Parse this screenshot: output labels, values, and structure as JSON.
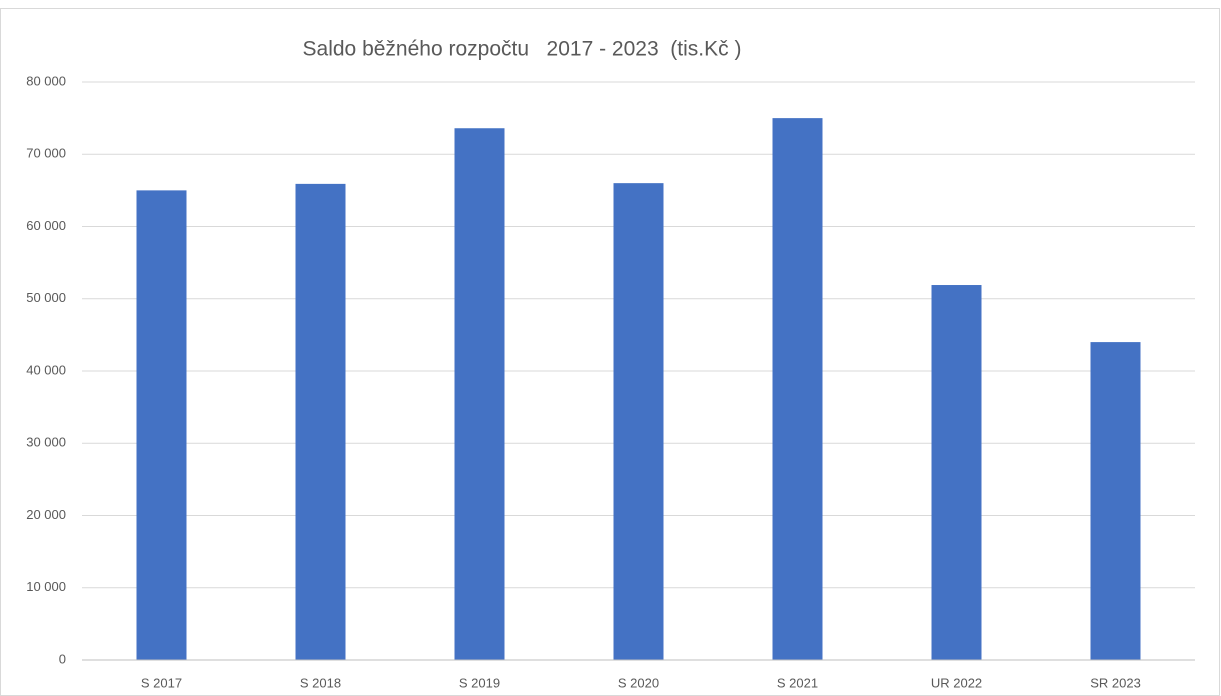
{
  "chart_data": {
    "type": "bar",
    "title": "Saldo běžného rozpočtu   2017 - 2023  (tis.Kč )",
    "categories": [
      "S 2017",
      "S 2018",
      "S 2019",
      "S 2020",
      "S 2021",
      "UR 2022",
      "SR 2023"
    ],
    "values": [
      65000,
      65900,
      73600,
      66000,
      75000,
      51900,
      44000
    ],
    "color": "#4472c4",
    "ylim": [
      0,
      80000
    ],
    "yticks": [
      0,
      {
        "value": 10000,
        "label": "10 000"
      },
      {
        "value": 20000,
        "label": "20 000"
      },
      {
        "value": 30000,
        "label": "30 000"
      },
      {
        "value": 40000,
        "label": "40 000"
      },
      {
        "value": 50000,
        "label": "50 000"
      },
      {
        "value": 60000,
        "label": "60 000"
      },
      {
        "value": 70000,
        "label": "70 000"
      },
      {
        "value": 80000,
        "label": "80 000"
      }
    ],
    "grid": true
  }
}
